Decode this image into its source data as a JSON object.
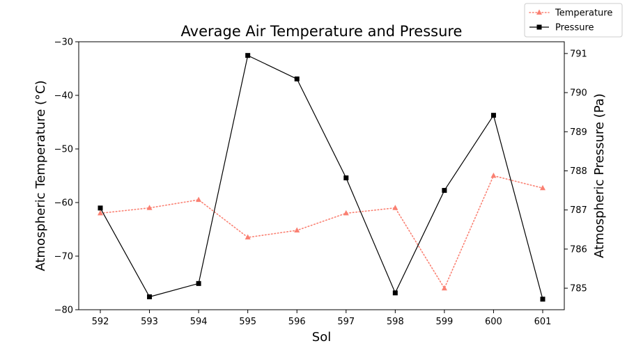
{
  "chart_data": {
    "type": "line",
    "title": "Average Air Temperature and Pressure",
    "xlabel": "Sol",
    "ylabel_left": "Atmospheric Temperature (°C)",
    "ylabel_right": "Atmospheric Pressure (Pa)",
    "x": [
      592,
      593,
      594,
      595,
      596,
      597,
      598,
      599,
      600,
      601
    ],
    "x_tick_labels": [
      "592",
      "593",
      "594",
      "595",
      "596",
      "597",
      "598",
      "599",
      "600",
      "601"
    ],
    "ylim_left": [
      -80,
      -30
    ],
    "yticks_left": [
      -80,
      -70,
      -60,
      -50,
      -40,
      -30
    ],
    "yticks_left_labels": [
      "−80",
      "−70",
      "−60",
      "−50",
      "−40",
      "−30"
    ],
    "ylim_right": [
      784.45,
      791.3
    ],
    "yticks_right": [
      785,
      786,
      787,
      788,
      789,
      790,
      791
    ],
    "yticks_right_labels": [
      "785",
      "786",
      "787",
      "788",
      "789",
      "790",
      "791"
    ],
    "grid": false,
    "legend_position": "top-right, outside plot area",
    "series": [
      {
        "name": "Temperature",
        "axis": "left",
        "color": "#fa8072",
        "line_style": "dotted",
        "marker": "triangle",
        "values": [
          -62.0,
          -61.0,
          -59.5,
          -66.5,
          -65.2,
          -62.0,
          -61.0,
          -76.0,
          -55.0,
          -57.3
        ]
      },
      {
        "name": "Pressure",
        "axis": "right",
        "color": "#000000",
        "line_style": "solid",
        "marker": "square",
        "values": [
          787.05,
          784.78,
          785.12,
          790.95,
          790.35,
          787.82,
          784.88,
          787.5,
          789.42,
          784.72
        ]
      }
    ]
  }
}
